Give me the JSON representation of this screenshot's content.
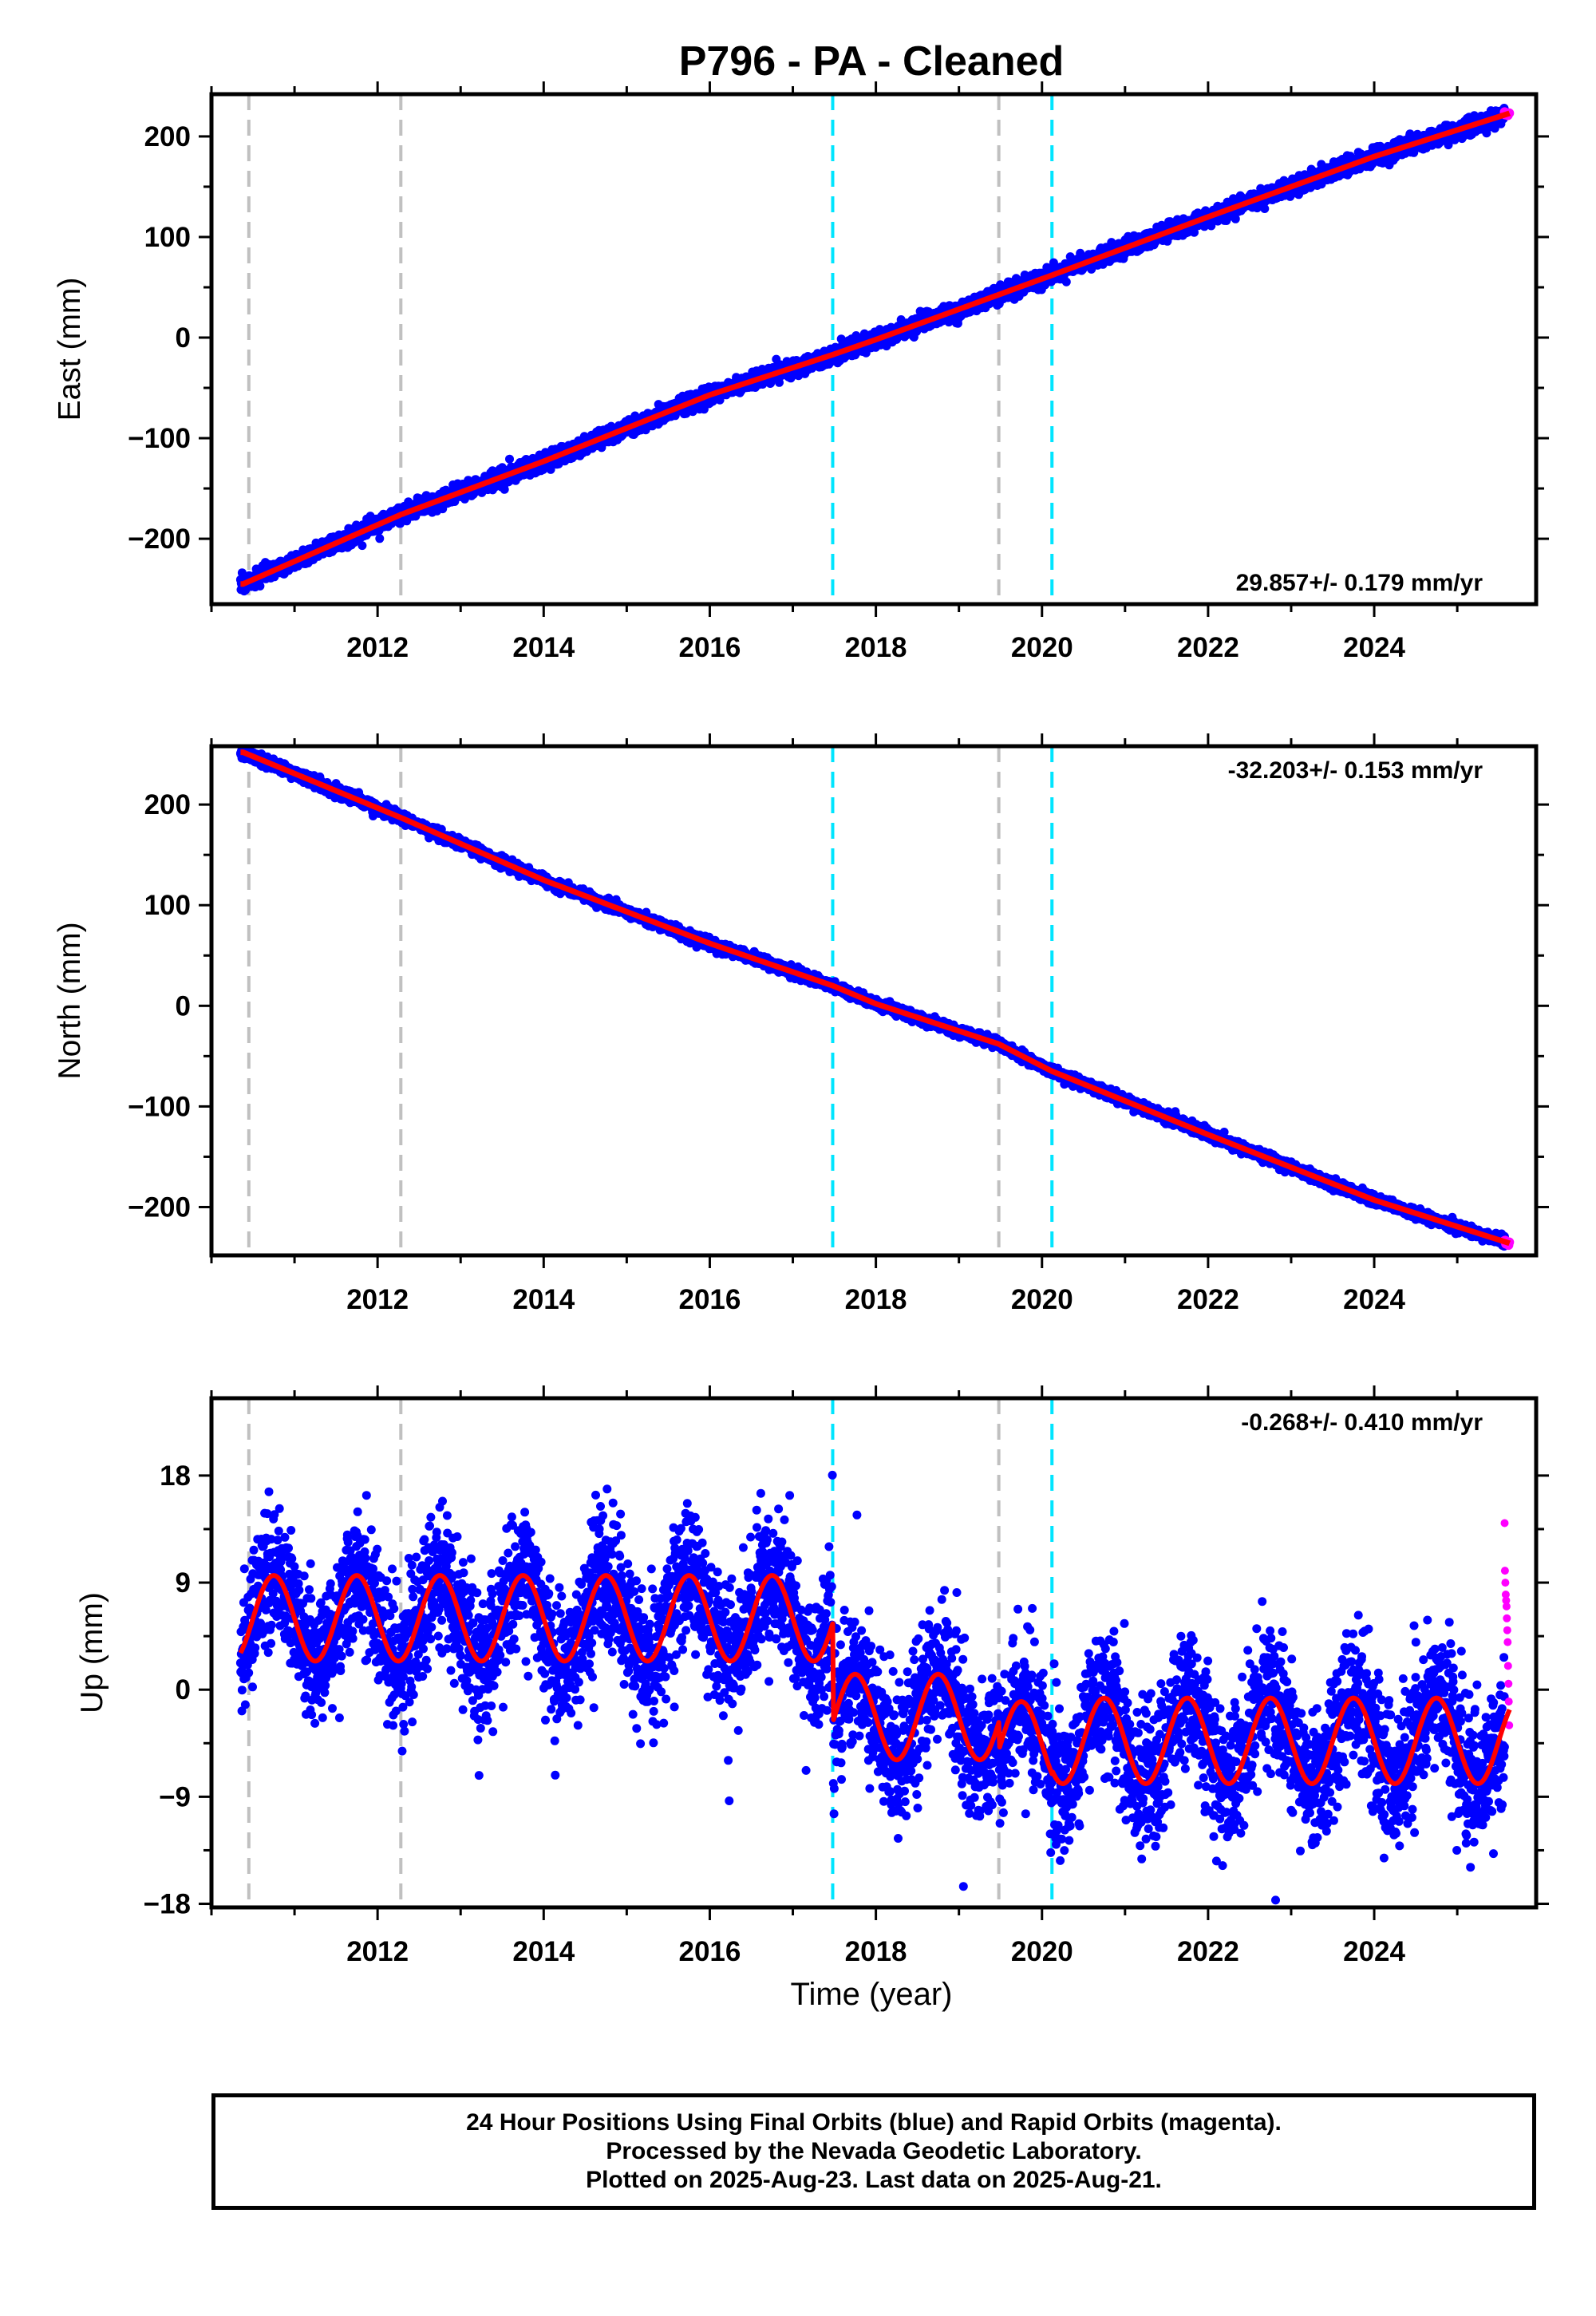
{
  "figure": {
    "title": "P796  - PA - Cleaned",
    "xlabel": "Time (year)",
    "colors": {
      "final_orbits": "#0000ff",
      "rapid_orbits": "#ff00ff",
      "model_fit": "#ff0000",
      "antenna_change_line": "#c0c0c0",
      "equipment_change_line": "#00e5ff",
      "frame": "#000000"
    },
    "footer": {
      "line1": "24 Hour Positions Using Final Orbits (blue) and Rapid Orbits (magenta).",
      "line2": "Processed by the Nevada Geodetic Laboratory.",
      "line3": "Plotted on 2025-Aug-23. Last data on 2025-Aug-21."
    }
  },
  "chart_data": [
    {
      "type": "scatter",
      "component": "east",
      "ylabel": "East (mm)",
      "rate_label": "29.857+/- 0.179 mm/yr",
      "xlim": [
        2010.0,
        2025.95
      ],
      "ylim": [
        -265,
        242
      ],
      "xticks": [
        2012,
        2014,
        2016,
        2018,
        2020,
        2022,
        2024
      ],
      "yticks": [
        -200,
        -100,
        0,
        100,
        200
      ],
      "ytick_labels": [
        "−200",
        "−100",
        "0",
        "100",
        "200"
      ],
      "grey_dashed_lines_x": [
        2010.45,
        2012.28,
        2019.48
      ],
      "cyan_dashed_lines_x": [
        2017.48,
        2020.12
      ],
      "data_start": 2010.35,
      "data_end": 2025.63,
      "rapid_start": 2025.57,
      "fit_anchor_points": [
        [
          2010.38,
          -245
        ],
        [
          2012.28,
          -176
        ],
        [
          2014.0,
          -123
        ],
        [
          2016.0,
          -57
        ],
        [
          2017.48,
          -17
        ],
        [
          2018.0,
          -2
        ],
        [
          2020.12,
          62
        ],
        [
          2022.0,
          120
        ],
        [
          2024.0,
          180
        ],
        [
          2025.63,
          223
        ]
      ],
      "noise_mm": 4.0
    },
    {
      "type": "scatter",
      "component": "north",
      "ylabel": "North (mm)",
      "rate_label": "-32.203+/- 0.153 mm/yr",
      "xlim": [
        2010.0,
        2025.95
      ],
      "ylim": [
        -248,
        258
      ],
      "xticks": [
        2012,
        2014,
        2016,
        2018,
        2020,
        2022,
        2024
      ],
      "yticks": [
        -200,
        -100,
        0,
        100,
        200
      ],
      "ytick_labels": [
        "−200",
        "−100",
        "0",
        "100",
        "200"
      ],
      "grey_dashed_lines_x": [
        2010.45,
        2012.28,
        2019.48
      ],
      "cyan_dashed_lines_x": [
        2017.48,
        2020.12
      ],
      "data_start": 2010.35,
      "data_end": 2025.63,
      "rapid_start": 2025.57,
      "fit_anchor_points": [
        [
          2010.38,
          252
        ],
        [
          2012.28,
          187
        ],
        [
          2014.0,
          125
        ],
        [
          2016.0,
          62
        ],
        [
          2017.48,
          20
        ],
        [
          2018.0,
          2
        ],
        [
          2019.48,
          -38
        ],
        [
          2020.12,
          -65
        ],
        [
          2022.0,
          -128
        ],
        [
          2024.0,
          -193
        ],
        [
          2025.63,
          -236
        ]
      ],
      "noise_mm": 2.5
    },
    {
      "type": "scatter",
      "component": "up",
      "ylabel": "Up (mm)",
      "rate_label": "-0.268+/- 0.410 mm/yr",
      "xlim": [
        2010.0,
        2025.95
      ],
      "ylim": [
        -18.3,
        24.5
      ],
      "xticks": [
        2012,
        2014,
        2016,
        2018,
        2020,
        2022,
        2024
      ],
      "yticks": [
        -18,
        -9,
        0,
        9,
        18
      ],
      "ytick_labels": [
        "−18",
        "−9",
        "0",
        "9",
        "18"
      ],
      "grey_dashed_lines_x": [
        2010.45,
        2012.28,
        2019.48
      ],
      "cyan_dashed_lines_x": [
        2017.48,
        2020.12
      ],
      "data_start": 2010.35,
      "data_end": 2025.63,
      "rapid_start": 2025.57,
      "seasonal_amplitude_mm": 3.6,
      "seasonal_peak_phase_year": 0.75,
      "offset_segments": [
        [
          2010.35,
          2017.48,
          6.0
        ],
        [
          2017.48,
          2019.48,
          -2.3
        ],
        [
          2019.48,
          2020.12,
          -4.6
        ],
        [
          2020.12,
          2025.63,
          -4.3
        ]
      ],
      "noise_mm": 2.8,
      "rapid_values": [
        14,
        10,
        9,
        8,
        7.5,
        7,
        6,
        5,
        4,
        2,
        0.5,
        -1,
        -3
      ]
    }
  ]
}
